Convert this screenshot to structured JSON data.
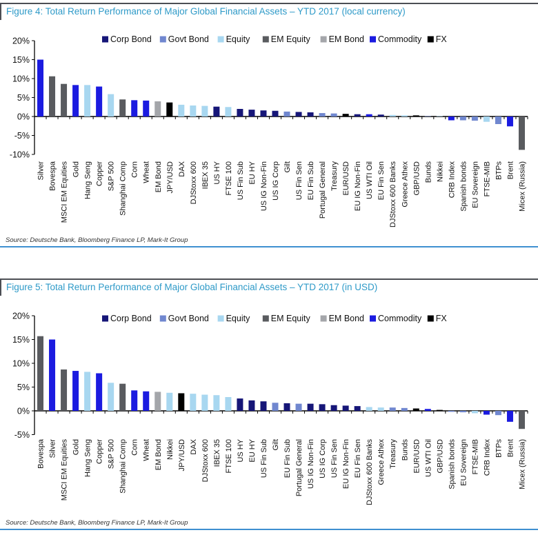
{
  "figures": [
    {
      "title": "Figure 4: Total Return Performance of Major Global Financial Assets – YTD 2017 (local currency)",
      "source": "Source: Deutsche Bank, Bloomberg Finance LP, Mark-It Group"
    },
    {
      "title": "Figure 5: Total Return Performance of Major Global Financial Assets – YTD 2017 (in USD)",
      "source": "Source: Deutsche Bank, Bloomberg Finance LP, Mark-It Group"
    }
  ],
  "chart_data": [
    {
      "type": "bar",
      "title": "Figure 4: Total Return Performance of Major Global Financial Assets – YTD 2017 (local currency)",
      "xlabel": "",
      "ylabel": "",
      "ylim": [
        -10,
        20
      ],
      "yticks": [
        20,
        15,
        10,
        5,
        0,
        -5,
        -10
      ],
      "grid": false,
      "legend_position": "top",
      "legend": [
        {
          "name": "Corp Bond",
          "color": "#161678"
        },
        {
          "name": "Govt Bond",
          "color": "#7087cf"
        },
        {
          "name": "Equity",
          "color": "#a8d7f0"
        },
        {
          "name": "EM Equity",
          "color": "#595b5f"
        },
        {
          "name": "EM Bond",
          "color": "#a4a6aa"
        },
        {
          "name": "Commodity",
          "color": "#1b1be0"
        },
        {
          "name": "FX",
          "color": "#000000"
        }
      ],
      "bars": [
        {
          "label": "Silver",
          "series": "Commodity",
          "value": 15.0
        },
        {
          "label": "Bovespa",
          "series": "EM Equity",
          "value": 10.6
        },
        {
          "label": "MSCI EM Equities",
          "series": "EM Equity",
          "value": 8.6
        },
        {
          "label": "Gold",
          "series": "Commodity",
          "value": 8.3
        },
        {
          "label": "Hang Seng",
          "series": "Equity",
          "value": 8.3
        },
        {
          "label": "Copper",
          "series": "Commodity",
          "value": 7.9
        },
        {
          "label": "S&P 500",
          "series": "Equity",
          "value": 5.9
        },
        {
          "label": "Shanghai Comp",
          "series": "EM Equity",
          "value": 4.5
        },
        {
          "label": "Corn",
          "series": "Commodity",
          "value": 4.3
        },
        {
          "label": "Wheat",
          "series": "Commodity",
          "value": 4.2
        },
        {
          "label": "EM Bond",
          "series": "EM Bond",
          "value": 4.0
        },
        {
          "label": "JPY/USD",
          "series": "FX",
          "value": 3.7
        },
        {
          "label": "DAX",
          "series": "Equity",
          "value": 3.1
        },
        {
          "label": "DJStoxx 600",
          "series": "Equity",
          "value": 2.9
        },
        {
          "label": "IBEX 35",
          "series": "Equity",
          "value": 2.8
        },
        {
          "label": "US HY",
          "series": "Corp Bond",
          "value": 2.6
        },
        {
          "label": "FTSE 100",
          "series": "Equity",
          "value": 2.5
        },
        {
          "label": "US Fin Sub",
          "series": "Corp Bond",
          "value": 2.0
        },
        {
          "label": "EU HY",
          "series": "Corp Bond",
          "value": 1.8
        },
        {
          "label": "US IG Non-Fin",
          "series": "Corp Bond",
          "value": 1.6
        },
        {
          "label": "US IG Corp",
          "series": "Corp Bond",
          "value": 1.5
        },
        {
          "label": "Gilt",
          "series": "Govt Bond",
          "value": 1.3
        },
        {
          "label": "US Fin Sen",
          "series": "Corp Bond",
          "value": 1.2
        },
        {
          "label": "EU Fin Sub",
          "series": "Corp Bond",
          "value": 1.1
        },
        {
          "label": "Portugal General",
          "series": "Govt Bond",
          "value": 0.9
        },
        {
          "label": "Treasury",
          "series": "Govt Bond",
          "value": 0.8
        },
        {
          "label": "EUR/USD",
          "series": "FX",
          "value": 0.7
        },
        {
          "label": "EU IG Non-Fin",
          "series": "Corp Bond",
          "value": 0.6
        },
        {
          "label": "US WTI Oil",
          "series": "Commodity",
          "value": 0.6
        },
        {
          "label": "EU Fin Sen",
          "series": "Corp Bond",
          "value": 0.5
        },
        {
          "label": "DJStoxx 600 Banks",
          "series": "Equity",
          "value": 0.4
        },
        {
          "label": "Greece Athex",
          "series": "Equity",
          "value": 0.3
        },
        {
          "label": "GBP/USD",
          "series": "FX",
          "value": 0.3
        },
        {
          "label": "Bunds",
          "series": "Govt Bond",
          "value": 0.1
        },
        {
          "label": "Nikkei",
          "series": "Equity",
          "value": 0.1
        },
        {
          "label": "CRB Index",
          "series": "Commodity",
          "value": -1.0
        },
        {
          "label": "Spanish bonds",
          "series": "Govt Bond",
          "value": -1.0
        },
        {
          "label": "EU Sovereign",
          "series": "Govt Bond",
          "value": -1.1
        },
        {
          "label": "FTSE-MIB",
          "series": "Equity",
          "value": -1.4
        },
        {
          "label": "BTPs",
          "series": "Govt Bond",
          "value": -2.0
        },
        {
          "label": "Brent",
          "series": "Commodity",
          "value": -2.6
        },
        {
          "label": "Micex (Russia)",
          "series": "EM Equity",
          "value": -8.8
        }
      ]
    },
    {
      "type": "bar",
      "title": "Figure 5: Total Return Performance of Major Global Financial Assets – YTD 2017 (in USD)",
      "xlabel": "",
      "ylabel": "",
      "ylim": [
        -5,
        20
      ],
      "yticks": [
        20,
        15,
        10,
        5,
        0,
        -5
      ],
      "grid": false,
      "legend_position": "top",
      "legend": [
        {
          "name": "Corp Bond",
          "color": "#161678"
        },
        {
          "name": "Govt Bond",
          "color": "#7087cf"
        },
        {
          "name": "Equity",
          "color": "#a8d7f0"
        },
        {
          "name": "EM Equity",
          "color": "#595b5f"
        },
        {
          "name": "EM Bond",
          "color": "#a4a6aa"
        },
        {
          "name": "Commodity",
          "color": "#1b1be0"
        },
        {
          "name": "FX",
          "color": "#000000"
        }
      ],
      "bars": [
        {
          "label": "Bovespa",
          "series": "EM Equity",
          "value": 15.7
        },
        {
          "label": "Silver",
          "series": "Commodity",
          "value": 15.0
        },
        {
          "label": "MSCI EM Equities",
          "series": "EM Equity",
          "value": 8.7
        },
        {
          "label": "Gold",
          "series": "Commodity",
          "value": 8.4
        },
        {
          "label": "Hang Seng",
          "series": "Equity",
          "value": 8.2
        },
        {
          "label": "Copper",
          "series": "Commodity",
          "value": 7.9
        },
        {
          "label": "S&P 500",
          "series": "Equity",
          "value": 5.9
        },
        {
          "label": "Shanghai Comp",
          "series": "EM Equity",
          "value": 5.7
        },
        {
          "label": "Corn",
          "series": "Commodity",
          "value": 4.3
        },
        {
          "label": "Wheat",
          "series": "Commodity",
          "value": 4.1
        },
        {
          "label": "EM Bond",
          "series": "EM Bond",
          "value": 4.0
        },
        {
          "label": "Nikkei",
          "series": "Equity",
          "value": 3.8
        },
        {
          "label": "JPY/USD",
          "series": "FX",
          "value": 3.7
        },
        {
          "label": "DAX",
          "series": "Equity",
          "value": 3.6
        },
        {
          "label": "DJStoxx 600",
          "series": "Equity",
          "value": 3.4
        },
        {
          "label": "IBEX 35",
          "series": "Equity",
          "value": 3.3
        },
        {
          "label": "FTSE 100",
          "series": "Equity",
          "value": 2.9
        },
        {
          "label": "US HY",
          "series": "Corp Bond",
          "value": 2.6
        },
        {
          "label": "EU HY",
          "series": "Corp Bond",
          "value": 2.2
        },
        {
          "label": "US Fin Sub",
          "series": "Corp Bond",
          "value": 2.0
        },
        {
          "label": "Gilt",
          "series": "Govt Bond",
          "value": 1.7
        },
        {
          "label": "EU Fin Sub",
          "series": "Corp Bond",
          "value": 1.6
        },
        {
          "label": "Portugal General",
          "series": "Govt Bond",
          "value": 1.5
        },
        {
          "label": "US IG Non-Fin",
          "series": "Corp Bond",
          "value": 1.5
        },
        {
          "label": "US IG Corp",
          "series": "Corp Bond",
          "value": 1.4
        },
        {
          "label": "US Fin Sen",
          "series": "Corp Bond",
          "value": 1.2
        },
        {
          "label": "EU IG Non-Fin",
          "series": "Corp Bond",
          "value": 1.1
        },
        {
          "label": "EU Fin Sen",
          "series": "Corp Bond",
          "value": 1.0
        },
        {
          "label": "DJStoxx 600 Banks",
          "series": "Equity",
          "value": 0.8
        },
        {
          "label": "Greece Athex",
          "series": "Equity",
          "value": 0.7
        },
        {
          "label": "Treasury",
          "series": "Govt Bond",
          "value": 0.7
        },
        {
          "label": "Bunds",
          "series": "Govt Bond",
          "value": 0.6
        },
        {
          "label": "EUR/USD",
          "series": "FX",
          "value": 0.5
        },
        {
          "label": "US WTI Oil",
          "series": "Commodity",
          "value": 0.4
        },
        {
          "label": "GBP/USD",
          "series": "FX",
          "value": 0.2
        },
        {
          "label": "Spanish bonds",
          "series": "Govt Bond",
          "value": -0.2
        },
        {
          "label": "EU Sovereign",
          "series": "Govt Bond",
          "value": -0.3
        },
        {
          "label": "FTSE-MIB",
          "series": "Equity",
          "value": -0.5
        },
        {
          "label": "CRB Index",
          "series": "Commodity",
          "value": -0.8
        },
        {
          "label": "BTPs",
          "series": "Govt Bond",
          "value": -0.9
        },
        {
          "label": "Brent",
          "series": "Commodity",
          "value": -2.3
        },
        {
          "label": "Micex (Russia)",
          "series": "EM Equity",
          "value": -3.8
        }
      ]
    }
  ]
}
